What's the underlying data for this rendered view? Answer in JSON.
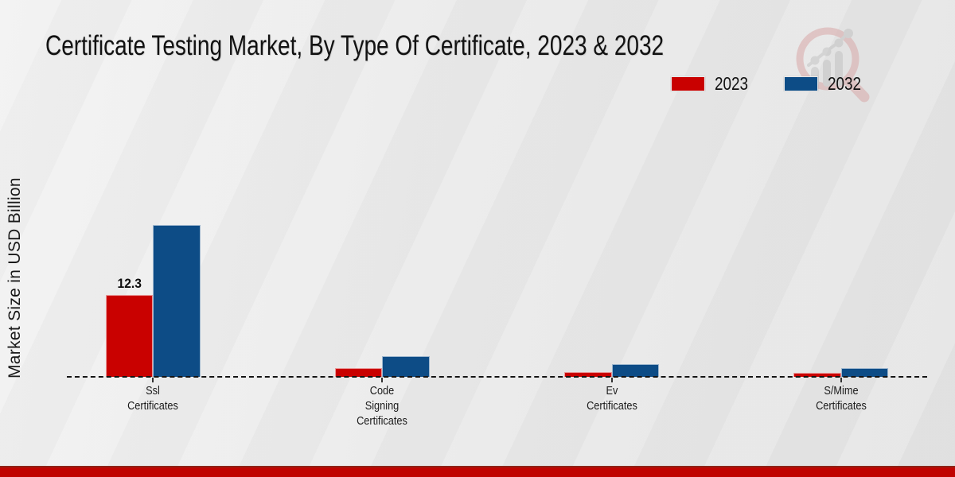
{
  "page": {
    "footer_color": "#c00300",
    "footer_edge_color": "#8e2418",
    "background_color": "#eaeaea",
    "baseline_color": "#141414"
  },
  "logo": {
    "name": "magnifier-growth-chart-watermark",
    "circle_color": "#d8a8a8",
    "bars_color": "#c3c3c3"
  },
  "chart_data": {
    "type": "bar",
    "title": "Certificate Testing Market, By Type Of Certificate, 2023 & 2032",
    "xlabel": "",
    "ylabel": "Market Size in USD Billion",
    "unit": "USD Billion",
    "categories": [
      "Ssl\nCertificates",
      "Code\nSigning\nCertificates",
      "Ev\nCertificates",
      "S/Mime\nCertificates"
    ],
    "series": [
      {
        "name": "2023",
        "color": "#c90100",
        "values": [
          12.3,
          1.3,
          0.7,
          0.6
        ]
      },
      {
        "name": "2032",
        "color": "#0d4c86",
        "values": [
          22.8,
          3.1,
          1.9,
          1.3
        ]
      }
    ],
    "bar_label": {
      "series": 0,
      "category": 0,
      "text": "12.3"
    },
    "legend_position": "top-right",
    "legend_entries": [
      "2023",
      "2032"
    ],
    "grid": false,
    "baseline_style": "dashed",
    "ylim": [
      0,
      24
    ]
  }
}
